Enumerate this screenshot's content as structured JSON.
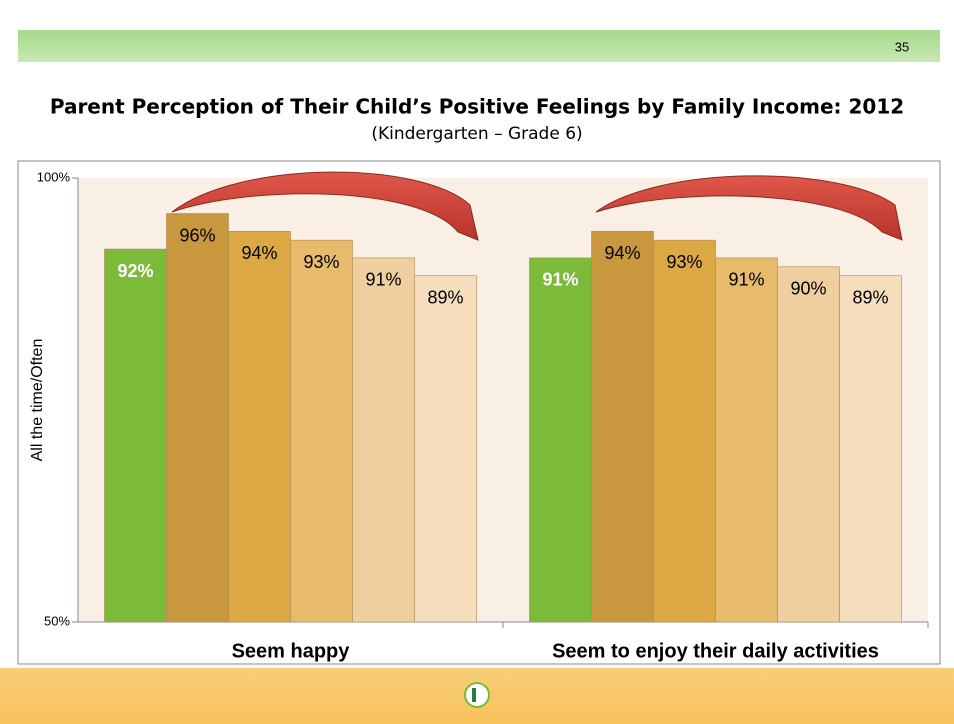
{
  "page_number": "35",
  "chart_data": {
    "type": "bar",
    "title": "Parent Perception of Their Child’s Positive Feelings by Family Income: 2012",
    "subtitle": "(Kindergarten – Grade 6)",
    "y_label": "All the time/Often",
    "categories": [
      "Seem happy",
      "Seem to enjoy their daily activities"
    ],
    "series": [
      {
        "color": "#7cba3a",
        "values": [
          92,
          91
        ],
        "value_labels": [
          "92%",
          "91%"
        ]
      },
      {
        "color": "#c8973e",
        "values": [
          96,
          94
        ],
        "value_labels": [
          "96%",
          "94%"
        ]
      },
      {
        "color": "#dba843",
        "values": [
          94,
          93
        ],
        "value_labels": [
          "94%",
          "93%"
        ]
      },
      {
        "color": "#e7ba6c",
        "values": [
          93,
          91
        ],
        "value_labels": [
          "93%",
          "91%"
        ]
      },
      {
        "color": "#efcf9f",
        "values": [
          91,
          90
        ],
        "value_labels": [
          "91%",
          "90%"
        ]
      },
      {
        "color": "#f5ddbd",
        "values": [
          89,
          89
        ],
        "value_labels": [
          "89%",
          "89%"
        ]
      }
    ],
    "ylim": [
      50,
      100
    ],
    "yticks": [
      {
        "value": 50,
        "label": "50%"
      },
      {
        "value": 100,
        "label": "100%"
      }
    ]
  }
}
